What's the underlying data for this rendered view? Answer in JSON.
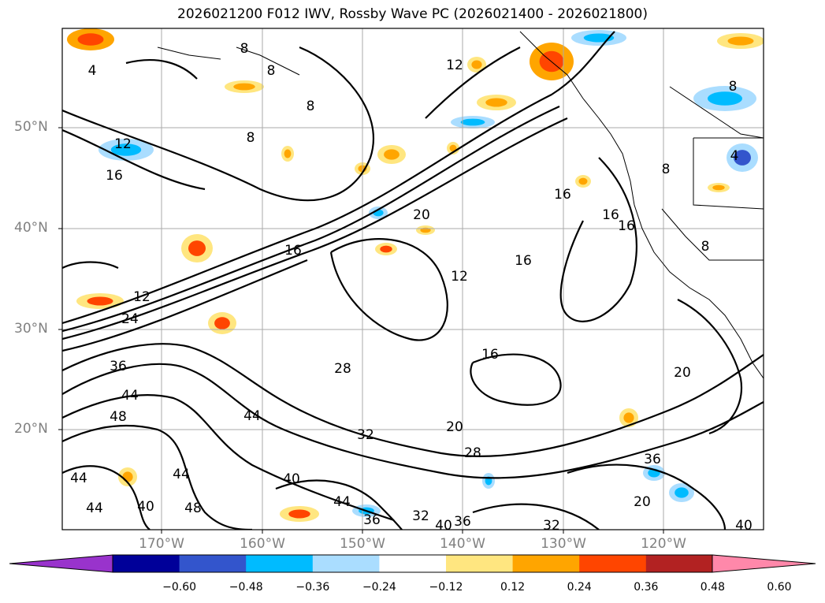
{
  "title": "2026021200 F012 IWV, Rossby Wave PC (2026021400 - 2026021800)",
  "axes": {
    "lat_labels": [
      "50°N",
      "40°N",
      "30°N",
      "20°N"
    ],
    "lon_labels": [
      "170°W",
      "160°W",
      "150°W",
      "140°W",
      "130°W",
      "120°W"
    ]
  },
  "colorbar": {
    "ticks": [
      "−0.60",
      "−0.48",
      "−0.36",
      "−0.24",
      "−0.12",
      "0.12",
      "0.24",
      "0.36",
      "0.48",
      "0.60"
    ],
    "colors": [
      "#9933cc",
      "#000099",
      "#3355cc",
      "#00bbff",
      "#aaddff",
      "#ffffff",
      "#ffe680",
      "#ffa500",
      "#ff4500",
      "#b22222",
      "#ff88aa"
    ]
  },
  "contour_labels": [
    "8",
    "4",
    "12",
    "8",
    "8",
    "12",
    "16",
    "8",
    "4",
    "8",
    "8",
    "16",
    "16",
    "16",
    "20",
    "12",
    "16",
    "12",
    "24",
    "36",
    "44",
    "48",
    "28",
    "16",
    "20",
    "44",
    "32",
    "20",
    "28",
    "36",
    "44",
    "40",
    "44",
    "44",
    "48",
    "36",
    "32",
    "40",
    "36",
    "32",
    "20",
    "40",
    "44",
    "40",
    "16",
    "8"
  ]
}
